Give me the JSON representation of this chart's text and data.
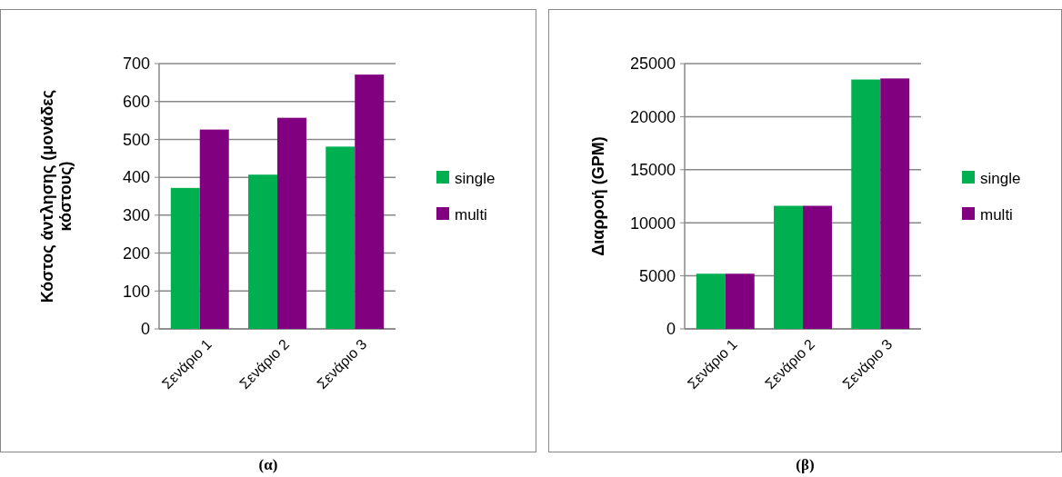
{
  "chart_data": [
    {
      "type": "bar",
      "ylabel": "Κόστος άντλησης (μονάδες κόστους)",
      "categories": [
        "Σενάριο 1",
        "Σενάριο 2",
        "Σενάριο 3"
      ],
      "series": [
        {
          "name": "single",
          "color": "#00b050",
          "values": [
            372,
            407,
            481
          ]
        },
        {
          "name": "multi",
          "color": "#800080",
          "values": [
            526,
            557,
            671
          ]
        }
      ],
      "ylim": [
        0,
        700
      ],
      "yticks": [
        0,
        100,
        200,
        300,
        400,
        500,
        600,
        700
      ],
      "grid": "y",
      "legend": "right",
      "annotations": [
        "(α)"
      ]
    },
    {
      "type": "bar",
      "ylabel": "Διαρροή (GPM)",
      "categories": [
        "Σενάριο 1",
        "Σενάριο 2",
        "Σενάριο 3"
      ],
      "series": [
        {
          "name": "single",
          "color": "#00b050",
          "values": [
            5200,
            11600,
            23500
          ]
        },
        {
          "name": "multi",
          "color": "#800080",
          "values": [
            5200,
            11600,
            23600
          ]
        }
      ],
      "ylim": [
        0,
        25000
      ],
      "yticks": [
        0,
        5000,
        10000,
        15000,
        20000,
        25000
      ],
      "grid": "y",
      "legend": "right",
      "annotations": [
        "(β)"
      ]
    }
  ]
}
